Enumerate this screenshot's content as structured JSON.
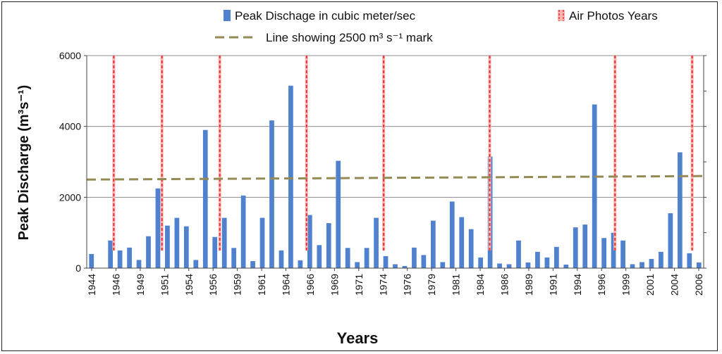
{
  "chart_data": {
    "type": "bar",
    "title": "",
    "xlabel": "Years",
    "ylabel": "Peak Discharge (m³s⁻¹)",
    "ylim": [
      0,
      6000
    ],
    "yticks": [
      0,
      2000,
      4000,
      6000
    ],
    "ytick_labels": [
      "0",
      "2000",
      "4000",
      "6000"
    ],
    "xtick_labels": [
      "1944",
      "1946",
      "1949",
      "1951",
      "1954",
      "1956",
      "1959",
      "1961",
      "1964",
      "1966",
      "1969",
      "1971",
      "1974",
      "1976",
      "1979",
      "1981",
      "1984",
      "1986",
      "1989",
      "1991",
      "1994",
      "1996",
      "1999",
      "2001",
      "2004",
      "2006"
    ],
    "bar_series": {
      "name": "Peak Dischage in cubic meter/sec",
      "color": "#4f81cf",
      "values": [
        400,
        0,
        780,
        500,
        580,
        230,
        900,
        2250,
        1200,
        1420,
        1180,
        230,
        3900,
        880,
        1420,
        570,
        2050,
        200,
        1420,
        4170,
        500,
        5150,
        220,
        1500,
        650,
        1270,
        3030,
        570,
        170,
        570,
        1420,
        340,
        110,
        60,
        580,
        370,
        1340,
        170,
        1880,
        1440,
        1100,
        300,
        3150,
        130,
        110,
        780,
        160,
        460,
        300,
        600,
        100,
        1150,
        1230,
        4620,
        850,
        1000,
        780,
        110,
        170,
        260,
        460,
        1550,
        3270,
        420,
        160
      ]
    },
    "air_photo_series": {
      "name": "Air Photos Years",
      "color": "#e8312f",
      "years": [
        1947,
        1952,
        1958,
        1967,
        1975,
        1986,
        1999,
        2007
      ]
    },
    "reference_line": {
      "name": "Line showing 2500  m³ s⁻¹ mark",
      "color": "#948a54",
      "start_value": 2500,
      "end_value": 2600
    },
    "legend": {
      "bars_label": "Peak Dischage in cubic meter/sec",
      "photos_label": "Air Photos Years",
      "line_label": "Line showing 2500  m³ s⁻¹ mark"
    },
    "grid": true,
    "legend_position": "top"
  }
}
